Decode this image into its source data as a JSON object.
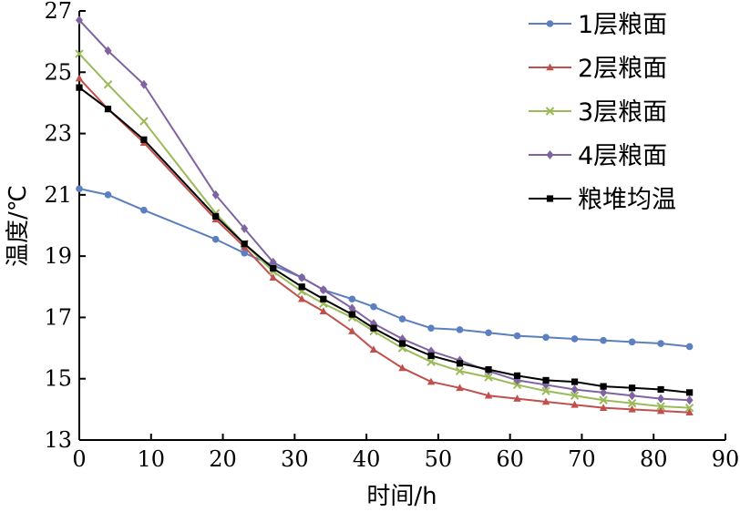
{
  "chart_data": {
    "type": "line",
    "title": "",
    "xlabel": "时间/h",
    "ylabel": "温度/℃",
    "xlim": [
      0,
      90
    ],
    "ylim": [
      13,
      27
    ],
    "xticks": [
      0,
      10,
      20,
      30,
      40,
      50,
      60,
      70,
      80,
      90
    ],
    "yticks": [
      13,
      15,
      17,
      19,
      21,
      23,
      25,
      27
    ],
    "grid": false,
    "legend_position": "top-right",
    "x": [
      0,
      4,
      9,
      19,
      23,
      27,
      31,
      34,
      38,
      41,
      45,
      49,
      53,
      57,
      61,
      65,
      69,
      73,
      77,
      81,
      85
    ],
    "series": [
      {
        "name": "1层粮面",
        "color": "#5b7fbf",
        "marker": "circle",
        "values": [
          21.2,
          21.0,
          20.5,
          19.55,
          19.1,
          18.7,
          18.3,
          17.9,
          17.6,
          17.35,
          16.95,
          16.65,
          16.6,
          16.5,
          16.4,
          16.35,
          16.3,
          16.25,
          16.2,
          16.15,
          16.05
        ]
      },
      {
        "name": "2层粮面",
        "color": "#c0504d",
        "marker": "triangle",
        "values": [
          24.8,
          23.8,
          22.7,
          20.2,
          19.3,
          18.3,
          17.6,
          17.2,
          16.55,
          15.95,
          15.35,
          14.9,
          14.7,
          14.45,
          14.35,
          14.25,
          14.15,
          14.05,
          14.0,
          13.95,
          13.9
        ]
      },
      {
        "name": "3层粮面",
        "color": "#9bbb59",
        "marker": "x",
        "values": [
          25.6,
          24.6,
          23.4,
          20.4,
          19.4,
          18.5,
          17.85,
          17.45,
          17.0,
          16.55,
          16.0,
          15.55,
          15.25,
          15.05,
          14.8,
          14.6,
          14.45,
          14.3,
          14.2,
          14.1,
          14.05
        ]
      },
      {
        "name": "4层粮面",
        "color": "#8064a2",
        "marker": "diamond",
        "values": [
          26.7,
          25.7,
          24.6,
          21.0,
          19.9,
          18.8,
          18.3,
          17.9,
          17.3,
          16.8,
          16.3,
          15.9,
          15.6,
          15.25,
          14.95,
          14.8,
          14.65,
          14.55,
          14.45,
          14.35,
          14.3
        ]
      },
      {
        "name": "粮堆均温",
        "color": "#000000",
        "marker": "square",
        "values": [
          24.5,
          23.8,
          22.8,
          20.3,
          19.4,
          18.6,
          18.0,
          17.6,
          17.1,
          16.65,
          16.15,
          15.75,
          15.5,
          15.3,
          15.1,
          14.95,
          14.9,
          14.75,
          14.7,
          14.65,
          14.55
        ]
      }
    ]
  }
}
